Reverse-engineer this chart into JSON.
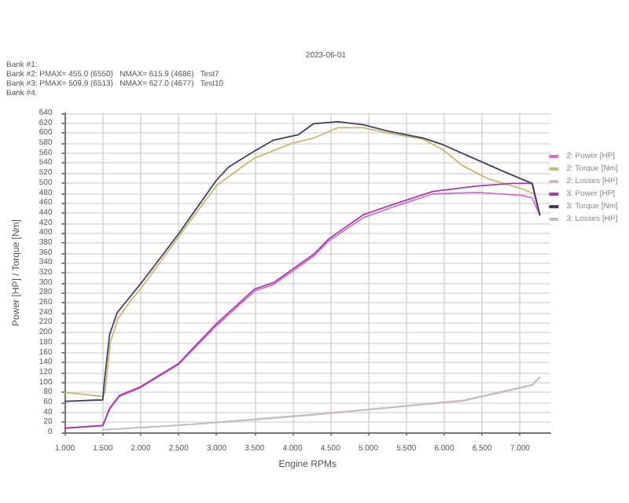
{
  "chart_data": {
    "type": "line",
    "xlabel": "Engine RPMs",
    "ylabel": "Power [HP] / Torque [Nm]",
    "annotations": [
      "2023-06-01",
      "Bank #1:",
      "Bank #2: PMAX= 455.0 (6550)   NMAX= 615.9 (4686)   Test7",
      "Bank #3: PMAX= 509.9 (6513)   NMAX= 627.0 (4677)   Test10",
      "Bank #4:"
    ],
    "xlim": [
      1,
      7.4
    ],
    "xticks": [
      {
        "value": 1,
        "label": "1.000"
      },
      {
        "value": 1.5,
        "label": "1.500"
      },
      {
        "value": 2,
        "label": "2.000"
      },
      {
        "value": 2.5,
        "label": "2.500"
      },
      {
        "value": 3,
        "label": "3.000"
      },
      {
        "value": 3.5,
        "label": "3.500"
      },
      {
        "value": 4,
        "label": "4.000"
      },
      {
        "value": 4.5,
        "label": "4.500"
      },
      {
        "value": 5,
        "label": "5.000"
      },
      {
        "value": 5.5,
        "label": "5.500"
      },
      {
        "value": 6,
        "label": "6.000"
      },
      {
        "value": 6.5,
        "label": "6.500"
      },
      {
        "value": 7,
        "label": "7.000"
      }
    ],
    "ylim": [
      0,
      640
    ],
    "yticks": [
      0,
      20,
      40,
      60,
      80,
      100,
      120,
      140,
      160,
      180,
      200,
      220,
      240,
      260,
      280,
      300,
      320,
      340,
      360,
      380,
      400,
      420,
      440,
      460,
      480,
      500,
      520,
      540,
      560,
      580,
      600,
      620,
      640
    ],
    "grid": true,
    "legend": "right",
    "marker": "none",
    "line_style": "solid",
    "series": [
      {
        "name": "2: Power [HP]",
        "color": "#d070d0",
        "x": [
          1,
          1.5,
          1.59,
          1.72,
          1.98,
          2.5,
          3,
          3.5,
          3.75,
          4.28,
          4.48,
          4.93,
          5.33,
          5.85,
          6.44,
          7.03,
          7.16,
          7.26
        ],
        "values": [
          8,
          13,
          46,
          72,
          88,
          136,
          214,
          283,
          296,
          353,
          384,
          430,
          452,
          478,
          481,
          475,
          470,
          436
        ]
      },
      {
        "name": "2: Torque [Nm]",
        "color": "#c8b878",
        "x": [
          1,
          1.5,
          1.53,
          1.6,
          1.7,
          1.86,
          2.02,
          2.5,
          3,
          3.5,
          4,
          4.28,
          4.6,
          4.93,
          5.26,
          5.72,
          5.98,
          6.24,
          6.57,
          7.03,
          7.19,
          7.26
        ],
        "values": [
          80,
          72,
          80,
          180,
          228,
          262,
          292,
          392,
          495,
          550,
          580,
          590,
          611,
          611,
          600,
          588,
          567,
          535,
          509,
          488,
          478,
          436
        ]
      },
      {
        "name": "2: Losses [HP]",
        "color": "#d8b8c8",
        "x": [
          1.5,
          2.5,
          3.5,
          4.28,
          5,
          6.25,
          7.16,
          7.26
        ],
        "values": [
          5,
          14,
          25,
          35,
          45,
          63,
          94,
          110
        ]
      },
      {
        "name": "3: Power [HP]",
        "color": "#a040a0",
        "x": [
          1,
          1.5,
          1.59,
          1.72,
          1.98,
          2.5,
          3,
          3.5,
          3.75,
          4.28,
          4.48,
          4.93,
          5.33,
          5.85,
          6.44,
          6.9,
          7.16,
          7.26
        ],
        "values": [
          8,
          14,
          48,
          74,
          90,
          138,
          218,
          287,
          300,
          357,
          388,
          436,
          457,
          483,
          494,
          499,
          499,
          436
        ]
      },
      {
        "name": "3: Torque [Nm]",
        "color": "#404060",
        "x": [
          1,
          1.5,
          1.52,
          1.59,
          1.69,
          1.85,
          2.01,
          2.5,
          3,
          3.16,
          3.49,
          3.75,
          4.08,
          4.28,
          4.6,
          4.93,
          5.26,
          5.72,
          5.98,
          6.44,
          6.83,
          7.16,
          7.26
        ],
        "values": [
          62,
          65,
          100,
          196,
          240,
          270,
          300,
          398,
          506,
          532,
          563,
          586,
          597,
          619,
          623,
          617,
          604,
          590,
          577,
          546,
          520,
          499,
          436
        ]
      },
      {
        "name": "3: Losses [HP]",
        "color": "#c0c0c0",
        "x": [
          1.5,
          2.5,
          3.5,
          4.28,
          5,
          6.25,
          7.16,
          7.26
        ],
        "values": [
          5,
          14,
          26,
          36,
          46,
          64,
          95,
          111
        ]
      }
    ]
  }
}
